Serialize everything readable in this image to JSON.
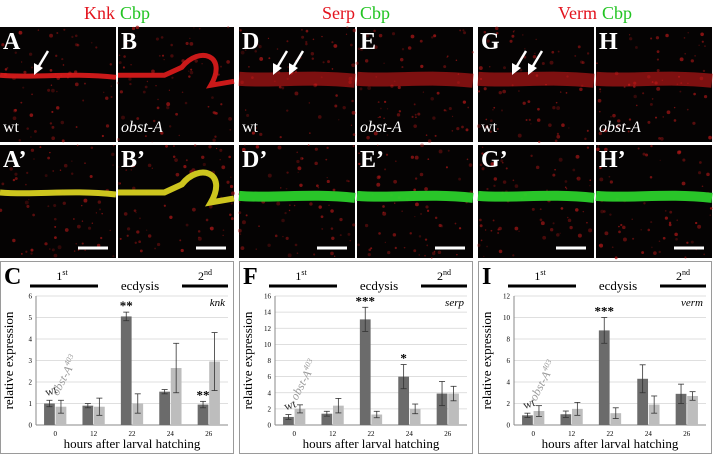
{
  "columns": [
    {
      "title_parts": [
        {
          "text": "Knk",
          "color": "#e3141e"
        },
        {
          "text": "Cbp",
          "color": "#22c422"
        }
      ],
      "panels": [
        {
          "label": "A",
          "genotype": "wt"
        },
        {
          "label": "B",
          "genotype": "obst-A"
        },
        {
          "label": "A’"
        },
        {
          "label": "B’"
        }
      ]
    },
    {
      "title_parts": [
        {
          "text": "Serp",
          "color": "#e3141e"
        },
        {
          "text": "Cbp",
          "color": "#22c422"
        }
      ],
      "panels": [
        {
          "label": "D",
          "genotype": "wt"
        },
        {
          "label": "E",
          "genotype": "obst-A"
        },
        {
          "label": "D’"
        },
        {
          "label": "E’"
        }
      ]
    },
    {
      "title_parts": [
        {
          "text": "Verm",
          "color": "#e3141e"
        },
        {
          "text": "Cbp",
          "color": "#22c422"
        }
      ],
      "panels": [
        {
          "label": "G",
          "genotype": "wt"
        },
        {
          "label": "H",
          "genotype": "obst-A"
        },
        {
          "label": "G’"
        },
        {
          "label": "H’"
        }
      ]
    }
  ],
  "chart_data": [
    {
      "type": "bar",
      "panel": "C",
      "gene": "knk",
      "stages": {
        "first": "1",
        "first_sup": "st",
        "middle": "ecdysis",
        "second": "2",
        "second_sup": "nd"
      },
      "ylabel": "relative expression",
      "xlabel": "hours after larval hatching",
      "categories": [
        "0",
        "12",
        "22",
        "24",
        "26"
      ],
      "series": [
        {
          "name": "wt",
          "color": "#6b6b6b",
          "values": [
            1.0,
            0.9,
            5.05,
            1.55,
            0.95
          ],
          "errors": [
            0.15,
            0.1,
            0.2,
            0.1,
            0.15
          ]
        },
        {
          "name": "obst-A",
          "name_sup": "403",
          "color": "#bdbdbd",
          "values": [
            0.85,
            0.85,
            1.0,
            2.65,
            2.95
          ],
          "errors": [
            0.3,
            0.4,
            0.45,
            1.15,
            1.35
          ]
        }
      ],
      "annotations": [
        {
          "category": "22",
          "text": "**"
        },
        {
          "category": "26",
          "text": "**"
        }
      ],
      "ylim": [
        0,
        6
      ],
      "yticks": [
        0,
        1,
        2,
        3,
        4,
        5,
        6
      ],
      "grid": true
    },
    {
      "type": "bar",
      "panel": "F",
      "gene": "serp",
      "stages": {
        "first": "1",
        "first_sup": "st",
        "middle": "ecdysis",
        "second": "2",
        "second_sup": "nd"
      },
      "ylabel": "relative expression",
      "xlabel": "hours after larval hatching",
      "categories": [
        "0",
        "12",
        "22",
        "24",
        "26"
      ],
      "series": [
        {
          "name": "wt",
          "color": "#6b6b6b",
          "values": [
            1.0,
            1.4,
            13.1,
            6.0,
            3.9
          ],
          "errors": [
            0.3,
            0.3,
            1.5,
            1.5,
            1.5
          ]
        },
        {
          "name": "obst-A",
          "name_sup": "403",
          "color": "#bdbdbd",
          "values": [
            2.0,
            2.4,
            1.3,
            2.0,
            3.9
          ],
          "errors": [
            0.5,
            0.9,
            0.4,
            0.6,
            0.9
          ]
        }
      ],
      "annotations": [
        {
          "category": "22",
          "text": "***"
        },
        {
          "category": "24",
          "text": "*"
        }
      ],
      "ylim": [
        0,
        16
      ],
      "yticks": [
        0,
        2,
        4,
        6,
        8,
        10,
        12,
        14,
        16
      ],
      "grid": true
    },
    {
      "type": "bar",
      "panel": "I",
      "gene": "verm",
      "stages": {
        "first": "1",
        "first_sup": "st",
        "middle": "ecdysis",
        "second": "2",
        "second_sup": "nd"
      },
      "ylabel": "relative expression",
      "xlabel": "hours after larval hatching",
      "categories": [
        "0",
        "12",
        "22",
        "24",
        "26"
      ],
      "series": [
        {
          "name": "wt",
          "color": "#6b6b6b",
          "values": [
            0.9,
            1.0,
            8.8,
            4.3,
            2.9
          ],
          "errors": [
            0.2,
            0.3,
            1.2,
            1.3,
            0.9
          ]
        },
        {
          "name": "obst-A",
          "name_sup": "403",
          "color": "#bdbdbd",
          "values": [
            1.3,
            1.5,
            1.1,
            1.9,
            2.7
          ],
          "errors": [
            0.5,
            0.6,
            0.5,
            0.8,
            0.4
          ]
        }
      ],
      "annotations": [
        {
          "category": "22",
          "text": "***"
        }
      ],
      "ylim": [
        0,
        12
      ],
      "yticks": [
        0,
        2,
        4,
        6,
        8,
        10,
        12
      ],
      "grid": true
    }
  ]
}
